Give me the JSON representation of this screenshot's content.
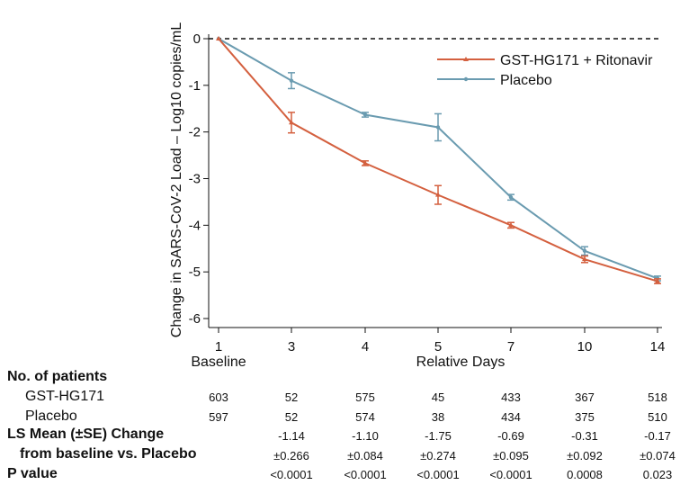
{
  "chart_data": {
    "type": "line",
    "ylabel": "Change in SARS-CoV-2 Load – Log10 copies/mL",
    "xlabel": "Relative Days",
    "x_sublabel": "Baseline",
    "categories": [
      "1",
      "3",
      "4",
      "5",
      "7",
      "10",
      "14"
    ],
    "yticks": [
      "0",
      "-1",
      "-2",
      "-3",
      "-4",
      "-5",
      "-6"
    ],
    "ylim": [
      -6,
      0
    ],
    "reference_line": 0,
    "legend_position": "top-right",
    "series": [
      {
        "name": "GST-HG171 + Ritonavir",
        "color": "#d4603f",
        "values": [
          0,
          -1.8,
          -2.67,
          -3.35,
          -4.0,
          -4.73,
          -5.2
        ],
        "errors": [
          0,
          0.22,
          0.05,
          0.2,
          0.06,
          0.07,
          0.05
        ]
      },
      {
        "name": "Placebo",
        "color": "#6a9bb0",
        "values": [
          0,
          -0.9,
          -1.63,
          -1.9,
          -3.4,
          -4.55,
          -5.14
        ],
        "errors": [
          0,
          0.17,
          0.05,
          0.29,
          0.06,
          0.09,
          0.05
        ]
      }
    ]
  },
  "table": {
    "patients_header": "No. of patients",
    "group1_label": "GST-HG171",
    "group1_values": [
      "603",
      "52",
      "575",
      "45",
      "433",
      "367",
      "518"
    ],
    "group2_label": "Placebo",
    "group2_values": [
      "597",
      "52",
      "574",
      "38",
      "434",
      "375",
      "510"
    ],
    "ls_label_line1": "LS Mean (±SE) Change",
    "ls_label_line2": "from baseline vs. Placebo",
    "ls_mean": [
      "",
      "-1.14",
      "-1.10",
      "-1.75",
      "-0.69",
      "-0.31",
      "-0.17"
    ],
    "ls_se": [
      "",
      "±0.266",
      "±0.084",
      "±0.274",
      "±0.095",
      "±0.092",
      "±0.074"
    ],
    "pvalue_label": "P value",
    "pvalues": [
      "",
      "<0.0001",
      "<0.0001",
      "<0.0001",
      "<0.0001",
      "0.0008",
      "0.023"
    ]
  }
}
